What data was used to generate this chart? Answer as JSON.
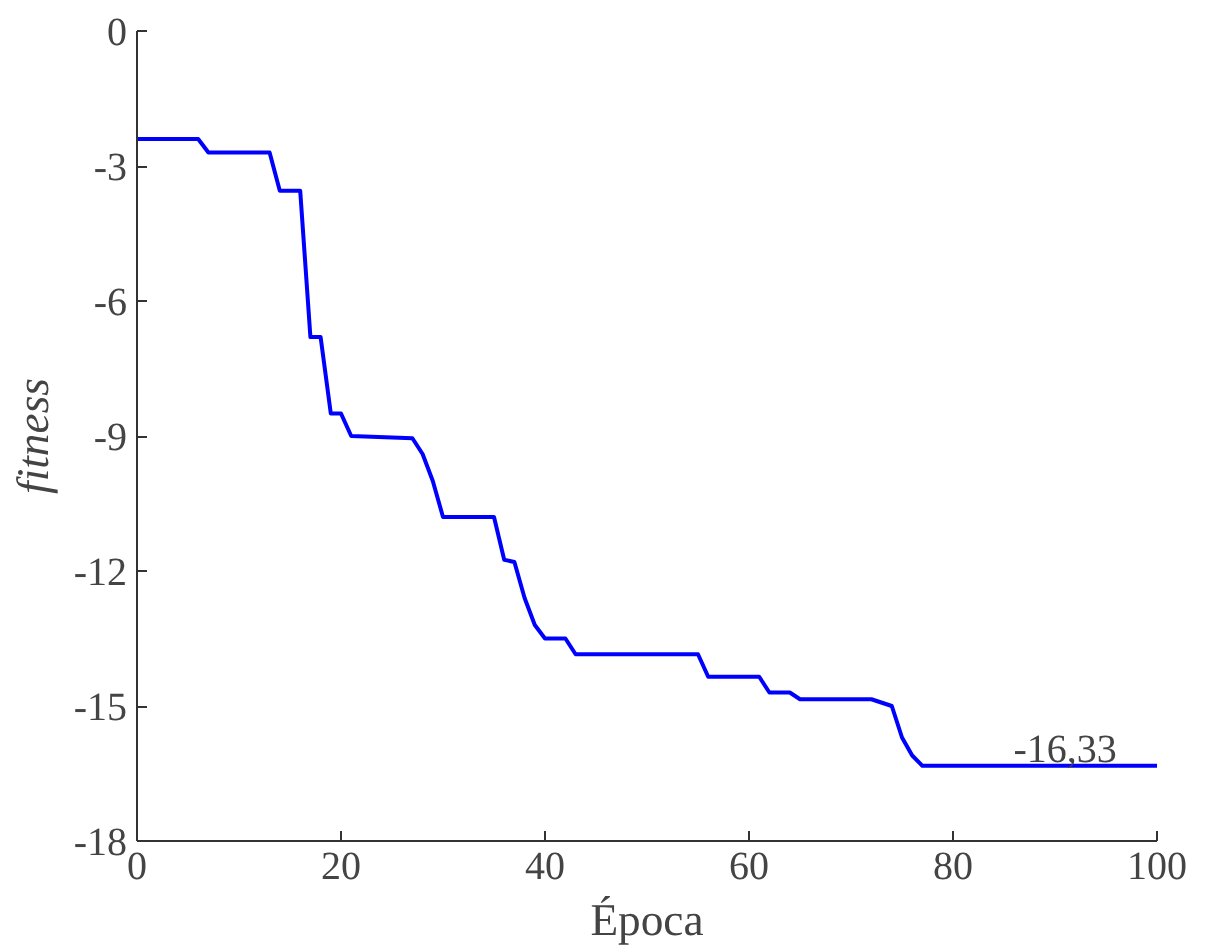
{
  "chart_data": {
    "type": "line",
    "xlabel": "Época",
    "ylabel": "fitness",
    "xlim": [
      0,
      100
    ],
    "ylim": [
      -18,
      0
    ],
    "xticks": [
      0,
      20,
      40,
      60,
      80,
      100
    ],
    "yticks": [
      -18,
      -15,
      -12,
      -9,
      -6,
      -3,
      0
    ],
    "grid": false,
    "marker": "none",
    "line_style": "solid",
    "x": [
      0,
      6,
      7,
      13,
      14,
      16,
      17,
      18,
      19,
      20,
      21,
      27,
      28,
      29,
      30,
      35,
      36,
      37,
      38,
      39,
      40,
      42,
      43,
      55,
      56,
      61,
      62,
      64,
      65,
      72,
      74,
      75,
      76,
      77,
      100
    ],
    "series": [
      {
        "color": "#0000ff",
        "values": [
          -2.4,
          -2.4,
          -2.7,
          -2.7,
          -3.55,
          -3.55,
          -6.8,
          -6.8,
          -8.5,
          -8.5,
          -9.0,
          -9.05,
          -9.4,
          -10.0,
          -10.8,
          -10.8,
          -11.75,
          -11.8,
          -12.6,
          -13.2,
          -13.5,
          -13.5,
          -13.85,
          -13.85,
          -14.35,
          -14.35,
          -14.7,
          -14.7,
          -14.85,
          -14.85,
          -15.0,
          -15.7,
          -16.1,
          -16.33,
          -16.33
        ]
      }
    ],
    "annotations": [
      {
        "text": "-16,33",
        "x": 91,
        "y": -16.33
      }
    ]
  }
}
